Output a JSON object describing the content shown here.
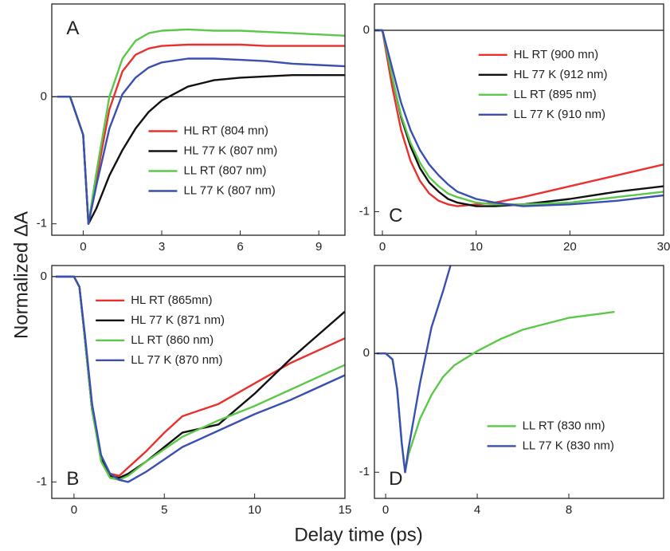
{
  "figure": {
    "xlabel": "Delay time (ps)",
    "ylabel": "Normalized ΔA"
  },
  "chart_data": [
    {
      "type": "line",
      "label": "A",
      "label_loc": "upper left",
      "legend_loc": "lower center",
      "xlim": [
        -1.2,
        10
      ],
      "ylim": [
        -1.09,
        0.73
      ],
      "xticks": [
        0,
        3,
        6,
        9
      ],
      "yticks": [
        -1,
        0
      ],
      "hline": 0,
      "x": [
        -1,
        -0.5,
        0,
        0.2,
        0.5,
        1,
        1.5,
        2,
        2.5,
        3,
        4,
        5,
        6,
        7,
        8,
        9,
        10
      ],
      "series": [
        {
          "name": "HL RT (804 mn)",
          "color": "#e8312f",
          "values": [
            0,
            0,
            -0.3,
            -1,
            -0.65,
            -0.1,
            0.2,
            0.33,
            0.38,
            0.4,
            0.41,
            0.41,
            0.41,
            0.4,
            0.4,
            0.4,
            0.4
          ]
        },
        {
          "name": "HL 77 K (807 nm)",
          "color": "#111111",
          "values": [
            0,
            0,
            -0.3,
            -1,
            -0.88,
            -0.62,
            -0.42,
            -0.25,
            -0.12,
            -0.03,
            0.08,
            0.13,
            0.15,
            0.16,
            0.17,
            0.17,
            0.17
          ]
        },
        {
          "name": "LL RT (807 nm)",
          "color": "#5cc84a",
          "values": [
            0,
            0,
            -0.3,
            -1,
            -0.6,
            0,
            0.3,
            0.44,
            0.5,
            0.52,
            0.53,
            0.52,
            0.52,
            0.51,
            0.5,
            0.49,
            0.48
          ]
        },
        {
          "name": "LL 77 K (807 nm)",
          "color": "#3a4fb0",
          "values": [
            0,
            0,
            -0.3,
            -1,
            -0.7,
            -0.25,
            0.02,
            0.15,
            0.23,
            0.27,
            0.3,
            0.3,
            0.29,
            0.28,
            0.26,
            0.25,
            0.24
          ]
        }
      ]
    },
    {
      "type": "line",
      "label": "C",
      "label_loc": "lower left",
      "legend_loc": "upper right",
      "xlim": [
        -0.85,
        30
      ],
      "ylim": [
        -1.13,
        0.145
      ],
      "xticks": [
        0,
        10,
        20,
        30
      ],
      "yticks": [
        -1,
        0
      ],
      "hline": 0,
      "x": [
        -0.8,
        0,
        0.5,
        1,
        2,
        3,
        4,
        5,
        6,
        7,
        8,
        10,
        12,
        15,
        20,
        25,
        30
      ],
      "series": [
        {
          "name": "HL RT (900 mn)",
          "color": "#e8312f",
          "values": [
            0,
            0,
            -0.15,
            -0.3,
            -0.55,
            -0.72,
            -0.83,
            -0.9,
            -0.94,
            -0.96,
            -0.97,
            -0.96,
            -0.95,
            -0.92,
            -0.86,
            -0.8,
            -0.74
          ]
        },
        {
          "name": "HL 77 K (912 nm)",
          "color": "#111111",
          "values": [
            0,
            0,
            -0.12,
            -0.25,
            -0.48,
            -0.64,
            -0.76,
            -0.84,
            -0.89,
            -0.93,
            -0.95,
            -0.97,
            -0.97,
            -0.96,
            -0.93,
            -0.89,
            -0.86
          ]
        },
        {
          "name": "LL RT (895 nm)",
          "color": "#5cc84a",
          "values": [
            0,
            0,
            -0.12,
            -0.25,
            -0.47,
            -0.62,
            -0.73,
            -0.81,
            -0.86,
            -0.9,
            -0.92,
            -0.95,
            -0.96,
            -0.96,
            -0.95,
            -0.92,
            -0.89
          ]
        },
        {
          "name": "LL 77 K (910 nm)",
          "color": "#3a4fb0",
          "values": [
            0,
            0,
            -0.1,
            -0.2,
            -0.4,
            -0.55,
            -0.66,
            -0.74,
            -0.8,
            -0.85,
            -0.89,
            -0.93,
            -0.95,
            -0.97,
            -0.96,
            -0.94,
            -0.91
          ]
        }
      ]
    },
    {
      "type": "line",
      "label": "B",
      "label_loc": "lower left",
      "legend_loc": "upper left",
      "xlim": [
        -1.23,
        15
      ],
      "ylim": [
        -1.08,
        0.054
      ],
      "xticks": [
        0,
        5,
        10,
        15
      ],
      "yticks": [
        -1,
        0
      ],
      "hline": 0,
      "x": [
        -1,
        0,
        0.3,
        0.6,
        1,
        1.5,
        2,
        2.5,
        3,
        4,
        5,
        6,
        8,
        10,
        12,
        15
      ],
      "series": [
        {
          "name": "HL RT (865mn)",
          "color": "#e8312f",
          "values": [
            0,
            0,
            -0.05,
            -0.3,
            -0.65,
            -0.88,
            -0.96,
            -0.97,
            -0.93,
            -0.85,
            -0.76,
            -0.68,
            -0.62,
            -0.52,
            -0.42,
            -0.3
          ]
        },
        {
          "name": "HL 77 K (871 nm)",
          "color": "#111111",
          "values": [
            0,
            0,
            -0.05,
            -0.3,
            -0.65,
            -0.88,
            -0.97,
            -0.98,
            -0.96,
            -0.9,
            -0.83,
            -0.76,
            -0.72,
            -0.57,
            -0.4,
            -0.17
          ]
        },
        {
          "name": "LL RT (860 nm)",
          "color": "#5cc84a",
          "values": [
            0,
            0,
            -0.05,
            -0.3,
            -0.65,
            -0.9,
            -0.98,
            -0.99,
            -0.97,
            -0.9,
            -0.84,
            -0.78,
            -0.7,
            -0.63,
            -0.55,
            -0.43
          ]
        },
        {
          "name": "LL 77 K (870 nm)",
          "color": "#3a4fb0",
          "values": [
            0,
            0,
            -0.05,
            -0.28,
            -0.62,
            -0.87,
            -0.96,
            -0.99,
            -1,
            -0.95,
            -0.89,
            -0.83,
            -0.75,
            -0.67,
            -0.6,
            -0.48
          ]
        }
      ]
    },
    {
      "type": "line",
      "label": "D",
      "label_loc": "lower left",
      "legend_loc": "lower right",
      "xlim": [
        -0.49,
        12.14
      ],
      "ylim": [
        -1.22,
        0.74
      ],
      "xticks": [
        0,
        4,
        8
      ],
      "yticks": [
        -1,
        0
      ],
      "hline": 0,
      "x": [
        -0.4,
        0,
        0.3,
        0.5,
        0.7,
        0.85,
        1,
        1.5,
        2,
        2.5,
        3,
        4,
        5,
        6,
        8,
        10
      ],
      "series": [
        {
          "name": "LL RT (830 nm)",
          "color": "#5cc84a",
          "values": [
            0,
            0,
            -0.05,
            -0.3,
            -0.75,
            -1,
            -0.85,
            -0.55,
            -0.35,
            -0.2,
            -0.1,
            0.02,
            0.12,
            0.2,
            0.3,
            0.35
          ]
        },
        {
          "name": "LL 77 K (830 nm)",
          "color": "#3a4fb0",
          "values": [
            0,
            0,
            -0.05,
            -0.3,
            -0.75,
            -1,
            -0.8,
            -0.25,
            0.22,
            0.52,
            0.85,
            null,
            null,
            null,
            null,
            null
          ]
        }
      ]
    }
  ]
}
